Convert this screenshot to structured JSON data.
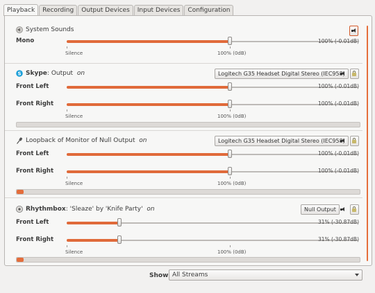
{
  "tabs": [
    "Playback",
    "Recording",
    "Output Devices",
    "Input Devices",
    "Configuration"
  ],
  "scale_labels": {
    "silence": "Silence",
    "hundred": "100% (0dB)"
  },
  "system_sounds": {
    "title": "System Sounds",
    "channel": "Mono",
    "level_fraction": 0.56,
    "value": "100% (-0.01dB)"
  },
  "skype": {
    "name": "Skype",
    "sep": ":",
    "stream": "Output",
    "state": "on",
    "device": "Logitech G35 Headset Digital Stereo (IEC958)",
    "channels": [
      {
        "label": "Front Left",
        "value": "100% (-0.01dB)",
        "level_fraction": 0.56
      },
      {
        "label": "Front Right",
        "value": "100% (-0.01dB)",
        "level_fraction": 0.56
      }
    ],
    "peak_fraction": 0.0
  },
  "loopback": {
    "name": "Loopback of Monitor of Null Output",
    "state": "on",
    "device": "Logitech G35 Headset Digital Stereo (IEC958)",
    "channels": [
      {
        "label": "Front Left",
        "value": "100% (-0.01dB)",
        "level_fraction": 0.56
      },
      {
        "label": "Front Right",
        "value": "100% (-0.01dB)",
        "level_fraction": 0.56
      }
    ],
    "peak_fraction": 0.02
  },
  "rhythmbox": {
    "name": "Rhythmbox",
    "sep": ":",
    "stream": "'Sleaze' by 'Knife Party'",
    "state": "on",
    "device": "Null Output",
    "channels": [
      {
        "label": "Front Left",
        "value": "31% (-30.87dB)",
        "level_fraction": 0.18
      },
      {
        "label": "Front Right",
        "value": "31% (-30.87dB)",
        "level_fraction": 0.18
      }
    ],
    "peak_fraction": 0.02
  },
  "footer": {
    "show_label": "Show:",
    "show_value": "All Streams"
  },
  "colors": {
    "accent": "#e06a3a",
    "background": "#f2f1f0"
  },
  "icons": {
    "system_sounds": "speaker-gray-icon",
    "skype": "skype-icon",
    "loopback": "microphone-icon",
    "rhythmbox": "rhythmbox-icon",
    "mute": "speaker-mute-icon",
    "lock": "lock-channels-icon"
  }
}
